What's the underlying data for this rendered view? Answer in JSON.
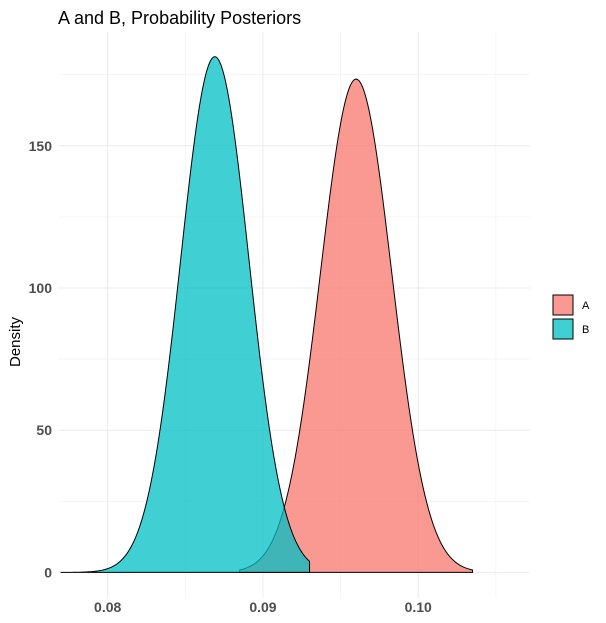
{
  "chart_data": {
    "type": "area",
    "title": "A and B, Probability Posteriors",
    "xlabel": "",
    "ylabel": "Density",
    "xlim": [
      0.0768,
      0.1072
    ],
    "ylim": [
      -9,
      190
    ],
    "x_ticks": [
      0.08,
      0.09,
      0.1
    ],
    "x_tick_labels": [
      "0.08",
      "0.09",
      "0.10"
    ],
    "y_ticks": [
      0,
      50,
      100,
      150
    ],
    "y_tick_labels": [
      "0",
      "50",
      "100",
      "150"
    ],
    "grid": true,
    "legend_position": "right",
    "series": [
      {
        "name": "A",
        "color": "#F8766D",
        "mean": 0.096,
        "sd": 0.0023,
        "range": [
          0.0885,
          0.1035
        ]
      },
      {
        "name": "B",
        "color": "#00BFC4",
        "mean": 0.0869,
        "sd": 0.0022,
        "range": [
          0.077,
          0.093
        ]
      }
    ],
    "approx_peaks": [
      {
        "series": "A",
        "x": 0.096,
        "y": 174
      },
      {
        "series": "B",
        "x": 0.0869,
        "y": 182
      }
    ]
  }
}
